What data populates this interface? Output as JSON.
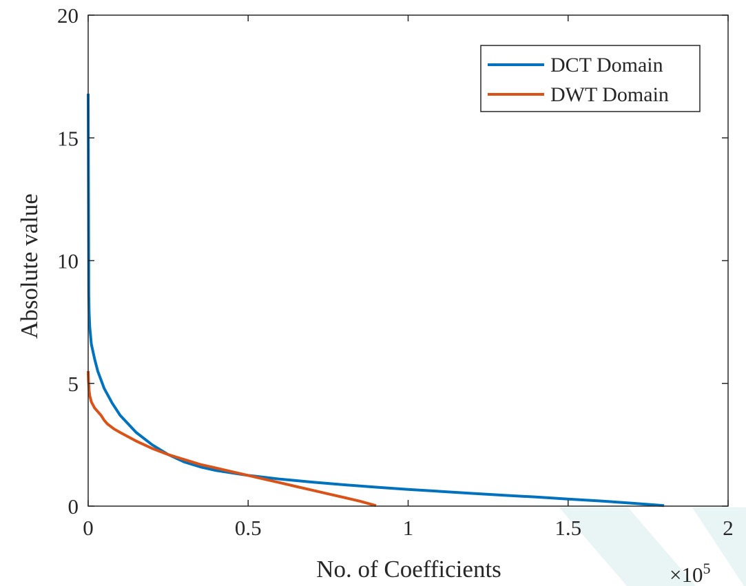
{
  "chart_data": {
    "type": "line",
    "xlabel": "No. of Coefficients",
    "ylabel": "Absolute value",
    "xlim": [
      0,
      2
    ],
    "ylim": [
      0,
      20
    ],
    "x_exponent_label": "×10",
    "x_exponent_power": "5",
    "x_ticks": [
      0,
      0.5,
      1,
      1.5,
      2
    ],
    "x_tick_labels": [
      "0",
      "0.5",
      "1",
      "1.5",
      "2"
    ],
    "y_ticks": [
      0,
      5,
      10,
      15,
      20
    ],
    "y_tick_labels": [
      "0",
      "5",
      "10",
      "15",
      "20"
    ],
    "grid": false,
    "legend_position": "top-right",
    "series": [
      {
        "name": "DCT Domain",
        "color": "#0072BD",
        "x": [
          0,
          0.001,
          0.002,
          0.003,
          0.005,
          0.01,
          0.02,
          0.03,
          0.05,
          0.075,
          0.1,
          0.15,
          0.2,
          0.25,
          0.3,
          0.35,
          0.4,
          0.5,
          0.6,
          0.7,
          0.8,
          0.9,
          1.0,
          1.1,
          1.2,
          1.3,
          1.4,
          1.5,
          1.6,
          1.7,
          1.8
        ],
        "y": [
          16.8,
          12.5,
          8.6,
          7.9,
          7.3,
          6.6,
          6.0,
          5.5,
          4.8,
          4.2,
          3.7,
          3.0,
          2.5,
          2.1,
          1.8,
          1.6,
          1.45,
          1.25,
          1.1,
          0.98,
          0.87,
          0.77,
          0.68,
          0.6,
          0.52,
          0.44,
          0.37,
          0.29,
          0.21,
          0.12,
          0.02
        ]
      },
      {
        "name": "DWT Domain",
        "color": "#D95319",
        "x": [
          0,
          0.001,
          0.003,
          0.005,
          0.01,
          0.02,
          0.03,
          0.04,
          0.05,
          0.06,
          0.08,
          0.1,
          0.15,
          0.2,
          0.25,
          0.3,
          0.35,
          0.4,
          0.45,
          0.5,
          0.55,
          0.6,
          0.65,
          0.7,
          0.75,
          0.8,
          0.85,
          0.9
        ],
        "y": [
          5.5,
          5.1,
          4.7,
          4.5,
          4.25,
          4.0,
          3.85,
          3.7,
          3.5,
          3.35,
          3.15,
          3.0,
          2.65,
          2.35,
          2.1,
          1.9,
          1.7,
          1.55,
          1.4,
          1.25,
          1.1,
          0.95,
          0.8,
          0.65,
          0.5,
          0.35,
          0.2,
          0.02
        ]
      }
    ]
  }
}
